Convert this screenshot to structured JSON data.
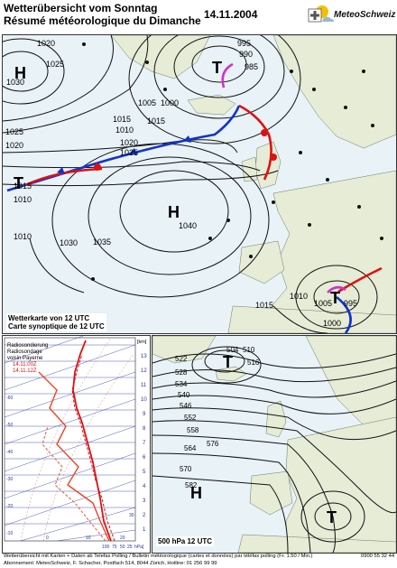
{
  "header": {
    "title_de": "Wetterübersicht vom Sonntag",
    "title_fr": "Résumé météorologique du Dimanche",
    "date": "14.11.2004",
    "logo_text": "MeteoSchweiz"
  },
  "synoptic": {
    "caption_de": "Wetterkarte von 12 UTC",
    "caption_fr": "Carte synoptique de 12 UTC",
    "highs": [
      "H",
      "H"
    ],
    "lows": [
      "T",
      "T",
      "T"
    ],
    "isobars": [
      "1020",
      "1025",
      "1030",
      "1025",
      "1020",
      "1015",
      "1010",
      "1005",
      "1000",
      "995",
      "990",
      "985",
      "1015",
      "1020",
      "1025",
      "1030",
      "1035",
      "1040",
      "1010",
      "1015",
      "1010",
      "1005",
      "1000",
      "995",
      "1015",
      "1010"
    ]
  },
  "sounding": {
    "legend_title": "Radiosondierung",
    "legend_fr": "Radiosondage",
    "legend_station": "voisin Payerne",
    "legend_time1": "14.11.00Z",
    "legend_time2": "14.11.12Z",
    "unit_km": "[km]",
    "unit_hpa": "hPa]",
    "altitude_ticks": [
      "13",
      "12",
      "11",
      "10",
      "9",
      "8",
      "7",
      "6",
      "5",
      "4",
      "3",
      "2",
      "1"
    ],
    "temp_ticks": [
      "-60",
      "-50",
      "-40",
      "-30",
      "-20",
      "-10",
      "0",
      "10",
      "20",
      "30"
    ],
    "pressure_ticks": [
      "100",
      "75",
      "50",
      "25"
    ],
    "colors": {
      "temperature": "#dd1111",
      "dewpoint": "#ee4422",
      "grid": "#2233aa"
    }
  },
  "upper": {
    "caption": "500 hPa 12 UTC",
    "highs": [
      "H"
    ],
    "lows": [
      "T",
      "T"
    ],
    "contours": [
      "504",
      "510",
      "516",
      "522",
      "528",
      "534",
      "540",
      "546",
      "552",
      "558",
      "564",
      "570",
      "576",
      "582"
    ]
  },
  "footer": {
    "line1": "Wetterübersicht mit Karten + Daten ab Telefax Polling / Bulletin météorologique (cartes et données) par téléfax polling  (Fr. 1.50 / Min.)",
    "line2": "Abonnement: MeteoSchweiz, F. Schacher, Postfach 514, 8044 Zürich, Hotline: 01 256 99 99",
    "fax": "0900 55 32 44"
  }
}
